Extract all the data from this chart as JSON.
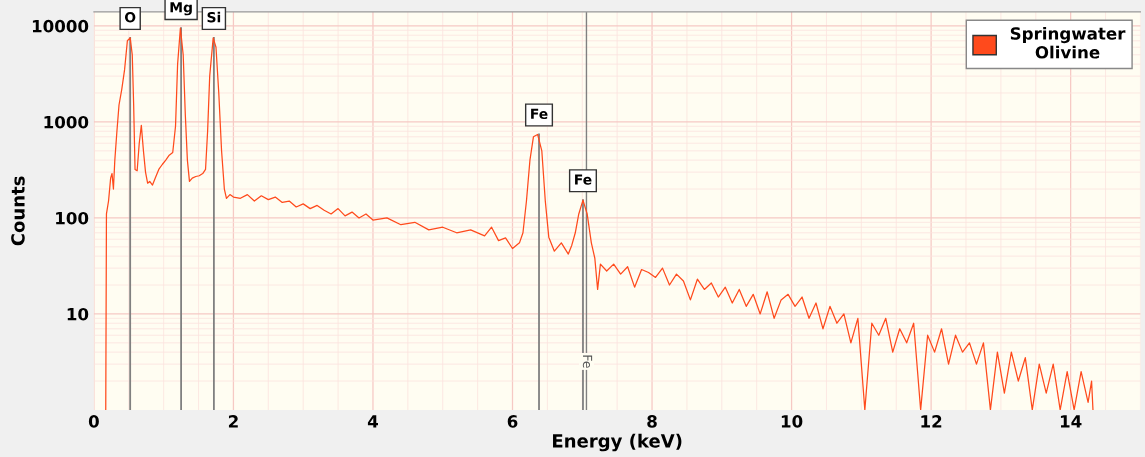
{
  "chart_data": {
    "type": "line",
    "xlabel": "Energy (keV)",
    "ylabel": "Counts",
    "log": "y",
    "grid": true,
    "legend": "top right",
    "xlim": [
      0,
      15
    ],
    "xticks": [
      0,
      2,
      4,
      6,
      8,
      10,
      12,
      14
    ],
    "ylim": [
      1,
      14000
    ],
    "yticks": [
      10,
      100,
      1000,
      10000
    ],
    "annotations": [
      {
        "text": "O",
        "x": 0.52,
        "y": 7500
      },
      {
        "text": "Mg",
        "x": 1.25,
        "y": 9500
      },
      {
        "text": "Si",
        "x": 1.72,
        "y": 7500
      },
      {
        "text": "Fe",
        "x": 6.38,
        "y": 740
      },
      {
        "text": "Fe",
        "x": 7.01,
        "y": 153
      }
    ],
    "ref_lines": [
      {
        "axis": "x",
        "value": 7.06,
        "label": "Fe"
      }
    ],
    "series": [
      {
        "name": "Springwater\nOlivine",
        "color": "#ff4a1c",
        "x": [
          0.17,
          0.18,
          0.21,
          0.24,
          0.26,
          0.28,
          0.3,
          0.33,
          0.36,
          0.4,
          0.44,
          0.48,
          0.52,
          0.55,
          0.57,
          0.59,
          0.62,
          0.65,
          0.68,
          0.71,
          0.74,
          0.77,
          0.8,
          0.84,
          0.88,
          0.93,
          0.98,
          1.03,
          1.08,
          1.13,
          1.17,
          1.2,
          1.24,
          1.28,
          1.31,
          1.34,
          1.37,
          1.41,
          1.46,
          1.51,
          1.56,
          1.6,
          1.63,
          1.66,
          1.71,
          1.75,
          1.79,
          1.83,
          1.87,
          1.9,
          1.95,
          2.0,
          2.1,
          2.2,
          2.3,
          2.4,
          2.5,
          2.6,
          2.7,
          2.8,
          2.9,
          3.0,
          3.1,
          3.2,
          3.3,
          3.4,
          3.5,
          3.6,
          3.7,
          3.8,
          3.9,
          4.0,
          4.2,
          4.4,
          4.6,
          4.8,
          5.0,
          5.2,
          5.4,
          5.6,
          5.7,
          5.8,
          5.9,
          6.0,
          6.1,
          6.15,
          6.2,
          6.25,
          6.3,
          6.36,
          6.42,
          6.47,
          6.52,
          6.6,
          6.7,
          6.8,
          6.85,
          6.9,
          6.95,
          7.01,
          7.07,
          7.13,
          7.18,
          7.22,
          7.26,
          7.35,
          7.45,
          7.55,
          7.65,
          7.75,
          7.85,
          7.95,
          8.05,
          8.15,
          8.25,
          8.35,
          8.45,
          8.55,
          8.65,
          8.75,
          8.85,
          8.95,
          9.05,
          9.15,
          9.25,
          9.35,
          9.45,
          9.55,
          9.65,
          9.75,
          9.85,
          9.95,
          10.05,
          10.15,
          10.25,
          10.35,
          10.45,
          10.55,
          10.65,
          10.75,
          10.85,
          10.95,
          11.05,
          11.15,
          11.25,
          11.35,
          11.45,
          11.55,
          11.65,
          11.75,
          11.85,
          11.95,
          12.05,
          12.15,
          12.25,
          12.35,
          12.45,
          12.55,
          12.65,
          12.75,
          12.85,
          12.95,
          13.05,
          13.15,
          13.25,
          13.35,
          13.45,
          13.55,
          13.65,
          13.75,
          13.85,
          13.95,
          14.05,
          14.15,
          14.25,
          14.3,
          14.32
        ],
        "values": [
          1,
          110,
          150,
          260,
          290,
          200,
          400,
          800,
          1500,
          2200,
          3500,
          7000,
          7500,
          5000,
          1500,
          320,
          310,
          600,
          920,
          500,
          300,
          230,
          240,
          220,
          260,
          320,
          360,
          400,
          450,
          480,
          900,
          4000,
          9500,
          5000,
          1200,
          400,
          240,
          260,
          270,
          275,
          290,
          320,
          800,
          3000,
          7500,
          6000,
          2000,
          500,
          200,
          160,
          175,
          165,
          160,
          175,
          150,
          170,
          155,
          165,
          145,
          150,
          130,
          140,
          125,
          135,
          120,
          110,
          125,
          105,
          115,
          100,
          110,
          95,
          100,
          85,
          90,
          75,
          80,
          70,
          75,
          65,
          80,
          58,
          62,
          48,
          55,
          70,
          150,
          400,
          700,
          740,
          500,
          150,
          63,
          45,
          55,
          42,
          52,
          70,
          110,
          153,
          110,
          55,
          38,
          18,
          33,
          28,
          33,
          26,
          31,
          19,
          29,
          27,
          24,
          30,
          20,
          26,
          22,
          14,
          23,
          18,
          21,
          15,
          19,
          13,
          18,
          12,
          16,
          10,
          17,
          9,
          14,
          16,
          12,
          15,
          9,
          13,
          7,
          12,
          8,
          10,
          5,
          9,
          1,
          8,
          6,
          9,
          4,
          7,
          5,
          8,
          1,
          6,
          4,
          7,
          3,
          6,
          4,
          5,
          3,
          5,
          1,
          4,
          1.5,
          4,
          2,
          3.5,
          1,
          3,
          1.5,
          3,
          1,
          2.5,
          1,
          2.5,
          1.2,
          2,
          1
        ]
      }
    ]
  }
}
